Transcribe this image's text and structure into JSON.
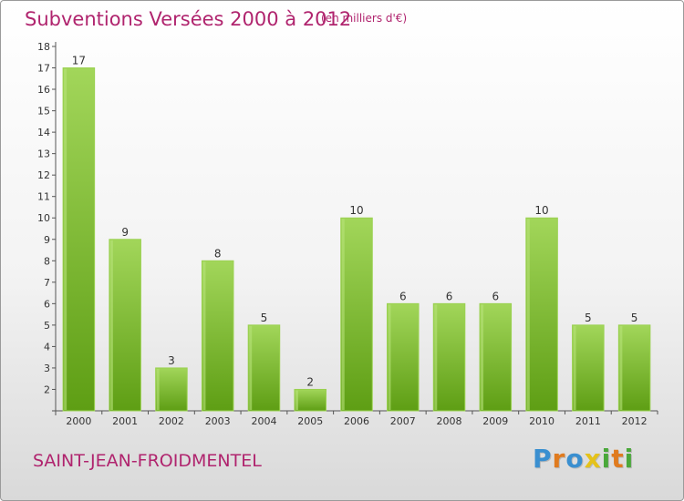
{
  "title": "Subventions Versées 2000 à 2012",
  "subtitle": "(en milliers d'€)",
  "commune": "SAINT-JEAN-FROIDMENTEL",
  "brand": {
    "letters": [
      "P",
      "r",
      "o",
      "x",
      "i",
      "t",
      "i"
    ],
    "colors": [
      "#3a8fd0",
      "#e07b1f",
      "#3a8fd0",
      "#e5c21a",
      "#4aa83a",
      "#e07b1f",
      "#4aa83a"
    ]
  },
  "chart_data": {
    "type": "bar",
    "categories": [
      "2000",
      "2001",
      "2002",
      "2003",
      "2004",
      "2005",
      "2006",
      "2007",
      "2008",
      "2009",
      "2010",
      "2011",
      "2012"
    ],
    "values": [
      17,
      9,
      3,
      8,
      5,
      2,
      10,
      6,
      6,
      6,
      10,
      5,
      5
    ],
    "data_labels": [
      "17",
      "9",
      "3",
      "8",
      "5",
      "2",
      "10",
      "6",
      "6",
      "6",
      "10",
      "5",
      "5"
    ],
    "ylim": [
      1,
      18
    ],
    "yticks": [
      1,
      2,
      3,
      4,
      5,
      6,
      7,
      8,
      9,
      10,
      11,
      12,
      13,
      14,
      15,
      16,
      17,
      18
    ],
    "ytick_labels": [
      "",
      "2",
      "3",
      "4",
      "5",
      "6",
      "7",
      "8",
      "9",
      "10",
      "11",
      "12",
      "13",
      "14",
      "15",
      "16",
      "17",
      "18"
    ],
    "bar_color": "#7cc02a",
    "grid": false
  }
}
